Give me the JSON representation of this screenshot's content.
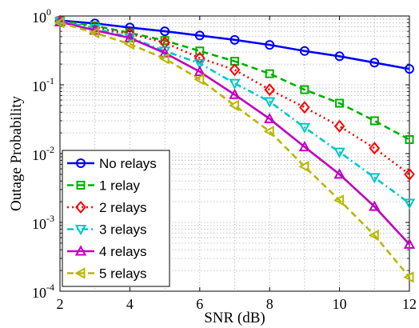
{
  "chart_data": {
    "type": "line",
    "xlabel": "SNR (dB)",
    "ylabel": "Outage Probability",
    "xlim": [
      2,
      12
    ],
    "ylim": [
      0.0001,
      1
    ],
    "yscale": "log",
    "grid": true,
    "legend_position": "bottom-left",
    "x_ticks": [
      "2",
      "4",
      "6",
      "8",
      "10",
      "12"
    ],
    "y_ticks": [
      {
        "base": "10",
        "exp": "-4",
        "value": 0.0001
      },
      {
        "base": "10",
        "exp": "-3",
        "value": 0.001
      },
      {
        "base": "10",
        "exp": "-2",
        "value": 0.01
      },
      {
        "base": "10",
        "exp": "-1",
        "value": 0.1
      },
      {
        "base": "10",
        "exp": "0",
        "value": 1
      }
    ],
    "x": [
      2,
      3,
      4,
      5,
      6,
      7,
      8,
      9,
      10,
      11,
      12
    ],
    "series": [
      {
        "name": "No relays",
        "color": "#0000ff",
        "marker": "circle",
        "dash": "solid",
        "values": [
          0.86,
          0.78,
          0.68,
          0.6,
          0.52,
          0.45,
          0.38,
          0.31,
          0.26,
          0.21,
          0.17
        ]
      },
      {
        "name": "1 relay",
        "color": "#00b000",
        "marker": "square",
        "dash": "dash",
        "values": [
          0.85,
          0.72,
          0.57,
          0.44,
          0.31,
          0.22,
          0.145,
          0.085,
          0.054,
          0.03,
          0.016
        ]
      },
      {
        "name": "2 relays",
        "color": "#ff0000",
        "marker": "diamond",
        "dash": "dot",
        "values": [
          0.84,
          0.67,
          0.55,
          0.41,
          0.245,
          0.165,
          0.085,
          0.047,
          0.025,
          0.012,
          0.005
        ]
      },
      {
        "name": "3 relays",
        "color": "#00c8c8",
        "marker": "triangle-down",
        "dash": "dashdot",
        "values": [
          0.83,
          0.66,
          0.49,
          0.31,
          0.205,
          0.105,
          0.057,
          0.024,
          0.0105,
          0.0045,
          0.0019
        ]
      },
      {
        "name": "4 relays",
        "color": "#c000c0",
        "marker": "triangle-up",
        "dash": "solid",
        "values": [
          0.82,
          0.62,
          0.48,
          0.29,
          0.155,
          0.072,
          0.032,
          0.0125,
          0.005,
          0.0017,
          0.00048
        ]
      },
      {
        "name": "5 relays",
        "color": "#b8b800",
        "marker": "triangle-left",
        "dash": "dash",
        "values": [
          0.8,
          0.57,
          0.39,
          0.24,
          0.12,
          0.05,
          0.021,
          0.0065,
          0.0021,
          0.00065,
          0.00016
        ]
      }
    ]
  }
}
